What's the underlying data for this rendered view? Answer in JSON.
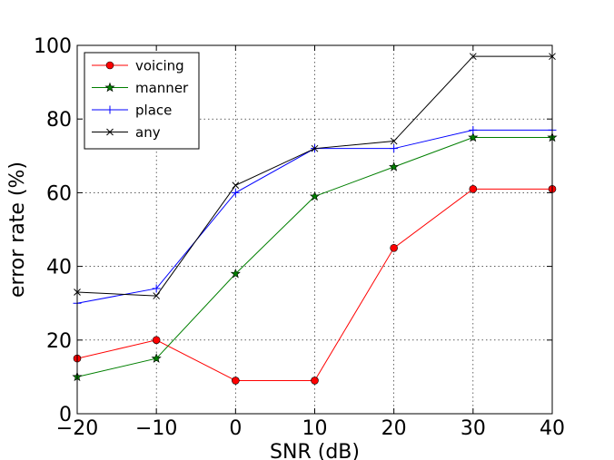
{
  "chart_data": {
    "type": "line",
    "title": "",
    "xlabel": "SNR (dB)",
    "ylabel": "error rate (%)",
    "x": [
      -20,
      -10,
      0,
      10,
      20,
      30,
      40
    ],
    "xlim": [
      -20,
      40
    ],
    "ylim": [
      0,
      100
    ],
    "xticks": [
      -20,
      -10,
      0,
      10,
      20,
      30,
      40
    ],
    "yticks": [
      0,
      20,
      40,
      60,
      80,
      100
    ],
    "grid": true,
    "legend_placement": "top-left",
    "series": [
      {
        "name": "voicing",
        "color": "#ff0000",
        "marker": "circle",
        "values": [
          15,
          20,
          9,
          9,
          45,
          61,
          61
        ]
      },
      {
        "name": "manner",
        "color": "#007f00",
        "marker": "star",
        "values": [
          10,
          15,
          38,
          59,
          67,
          75,
          75
        ]
      },
      {
        "name": "place",
        "color": "#0000ff",
        "marker": "plus",
        "values": [
          30,
          34,
          60,
          72,
          72,
          77,
          77
        ]
      },
      {
        "name": "any",
        "color": "#000000",
        "marker": "x",
        "values": [
          33,
          32,
          62,
          72,
          74,
          97,
          97
        ]
      }
    ]
  }
}
